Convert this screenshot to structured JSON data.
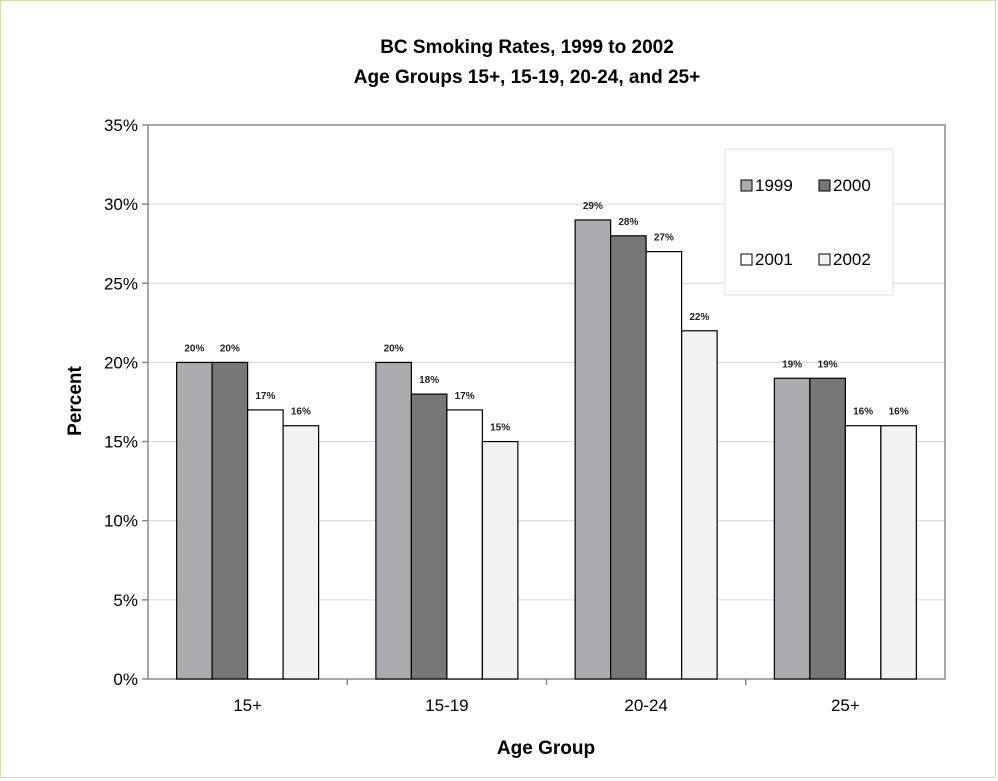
{
  "chart_data": {
    "type": "bar",
    "title": "BC Smoking Rates, 1999 to 2002",
    "subtitle": "Age Groups 15+, 15-19, 20-24, and 25+",
    "xlabel": "Age Group",
    "ylabel": "Percent",
    "categories": [
      "15+",
      "15-19",
      "20-24",
      "25+"
    ],
    "ylim": [
      0,
      35
    ],
    "yticks": [
      0,
      5,
      10,
      15,
      20,
      25,
      30,
      35
    ],
    "ytick_labels": [
      "0%",
      "5%",
      "10%",
      "15%",
      "20%",
      "25%",
      "30%",
      "35%"
    ],
    "grid": true,
    "legend_position": "top-right",
    "series": [
      {
        "name": "1999",
        "values": [
          20,
          20,
          29,
          19
        ],
        "labels": [
          "20%",
          "20%",
          "29%",
          "19%"
        ],
        "color": "#a9abae"
      },
      {
        "name": "2000",
        "values": [
          20,
          18,
          28,
          19
        ],
        "labels": [
          "20%",
          "18%",
          "28%",
          "19%"
        ],
        "color": "#767779"
      },
      {
        "name": "2001",
        "values": [
          17,
          17,
          27,
          16
        ],
        "labels": [
          "17%",
          "17%",
          "27%",
          "16%"
        ],
        "color": "#ffffff"
      },
      {
        "name": "2002",
        "values": [
          16,
          15,
          22,
          16
        ],
        "labels": [
          "16%",
          "15%",
          "22%",
          "16%"
        ],
        "color": "#f1f2f2"
      }
    ]
  }
}
